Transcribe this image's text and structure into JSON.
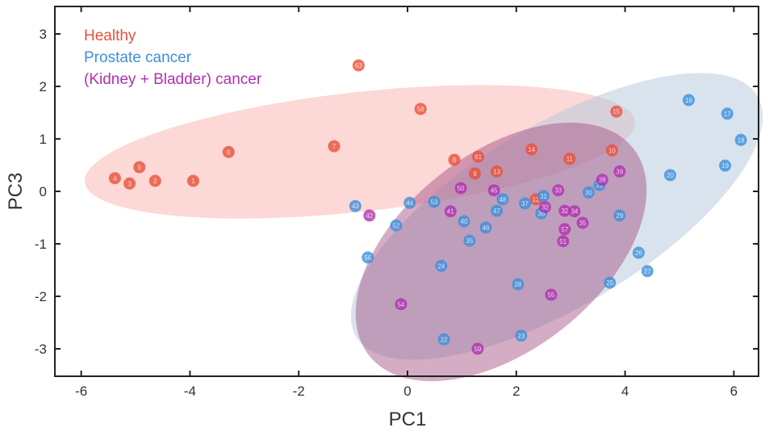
{
  "chart_data": {
    "type": "scatter",
    "xlabel": "PC1",
    "ylabel": "PC3",
    "xlim": [
      -6.5,
      6.5
    ],
    "ylim": [
      -3.5,
      3.5
    ],
    "xticks": [
      -6,
      -4,
      -2,
      0,
      2,
      4,
      6
    ],
    "yticks": [
      -3,
      -2,
      -1,
      0,
      1,
      2,
      3
    ],
    "grid": false,
    "legend_placement": "top-left",
    "legend": [
      {
        "name": "Healthy",
        "color": "#e8503a"
      },
      {
        "name": "Prostate cancer",
        "color": "#3d8fdc"
      },
      {
        "name": "(Kidney + Bladder) cancer",
        "color": "#b02fb0"
      }
    ],
    "series": [
      {
        "name": "Healthy",
        "color": "#e8503a",
        "ellipse_fill": "#f9a8a4",
        "points": [
          {
            "x": -5.38,
            "y": 0.25,
            "label": "4"
          },
          {
            "x": -5.11,
            "y": 0.15,
            "label": "3"
          },
          {
            "x": -4.93,
            "y": 0.46,
            "label": "5"
          },
          {
            "x": -4.64,
            "y": 0.2,
            "label": "2"
          },
          {
            "x": -3.94,
            "y": 0.2,
            "label": "1"
          },
          {
            "x": -3.29,
            "y": 0.75,
            "label": "6"
          },
          {
            "x": -1.35,
            "y": 0.86,
            "label": "7"
          },
          {
            "x": -0.9,
            "y": 2.4,
            "label": "63"
          },
          {
            "x": 0.24,
            "y": 1.57,
            "label": "58"
          },
          {
            "x": 0.86,
            "y": 0.6,
            "label": "8"
          },
          {
            "x": 1.3,
            "y": 0.66,
            "label": "61"
          },
          {
            "x": 1.24,
            "y": 0.34,
            "label": "9"
          },
          {
            "x": 1.64,
            "y": 0.38,
            "label": "13"
          },
          {
            "x": 2.28,
            "y": 0.8,
            "label": "14"
          },
          {
            "x": 2.36,
            "y": -0.15,
            "label": "12"
          },
          {
            "x": 2.98,
            "y": 0.62,
            "label": "11"
          },
          {
            "x": 3.76,
            "y": 0.78,
            "label": "10"
          },
          {
            "x": 3.84,
            "y": 1.52,
            "label": "15"
          }
        ]
      },
      {
        "name": "Prostate cancer",
        "color": "#3d8fdc",
        "ellipse_fill": "#b4c8dc",
        "points": [
          {
            "x": 5.17,
            "y": 1.74,
            "label": "16"
          },
          {
            "x": 5.88,
            "y": 1.48,
            "label": "17"
          },
          {
            "x": 6.13,
            "y": 0.98,
            "label": "18"
          },
          {
            "x": 5.84,
            "y": 0.49,
            "label": "19"
          },
          {
            "x": 4.83,
            "y": 0.31,
            "label": "20"
          },
          {
            "x": 3.53,
            "y": 0.12,
            "label": "21"
          },
          {
            "x": 3.33,
            "y": -0.02,
            "label": "30"
          },
          {
            "x": 2.5,
            "y": -0.09,
            "label": "31"
          },
          {
            "x": 2.46,
            "y": -0.42,
            "label": "36"
          },
          {
            "x": 3.9,
            "y": -0.46,
            "label": "29"
          },
          {
            "x": 4.25,
            "y": -1.17,
            "label": "26"
          },
          {
            "x": 4.41,
            "y": -1.52,
            "label": "27"
          },
          {
            "x": 3.72,
            "y": -1.74,
            "label": "25"
          },
          {
            "x": 2.03,
            "y": -1.77,
            "label": "28"
          },
          {
            "x": 0.62,
            "y": -1.42,
            "label": "24"
          },
          {
            "x": 1.14,
            "y": -0.94,
            "label": "35"
          },
          {
            "x": 0.67,
            "y": -2.82,
            "label": "22"
          },
          {
            "x": 2.09,
            "y": -2.75,
            "label": "23"
          },
          {
            "x": 2.16,
            "y": -0.23,
            "label": "37"
          },
          {
            "x": 1.75,
            "y": -0.15,
            "label": "48"
          },
          {
            "x": 1.64,
            "y": -0.37,
            "label": "47"
          },
          {
            "x": 1.04,
            "y": -0.57,
            "label": "40"
          },
          {
            "x": 1.44,
            "y": -0.69,
            "label": "46"
          },
          {
            "x": 0.49,
            "y": -0.2,
            "label": "53"
          },
          {
            "x": 0.04,
            "y": -0.22,
            "label": "44"
          },
          {
            "x": -0.96,
            "y": -0.28,
            "label": "43"
          },
          {
            "x": -0.21,
            "y": -0.65,
            "label": "52"
          },
          {
            "x": -0.73,
            "y": -1.26,
            "label": "56"
          }
        ]
      },
      {
        "name": "(Kidney + Bladder) cancer",
        "color": "#b02fb0",
        "ellipse_fill": "#a04a7e",
        "points": [
          {
            "x": -0.7,
            "y": -0.46,
            "label": "42"
          },
          {
            "x": 0.79,
            "y": -0.38,
            "label": "41"
          },
          {
            "x": 0.98,
            "y": 0.06,
            "label": "50"
          },
          {
            "x": 1.59,
            "y": 0.02,
            "label": "45"
          },
          {
            "x": 2.77,
            "y": 0.02,
            "label": "33"
          },
          {
            "x": 3.58,
            "y": 0.22,
            "label": "38"
          },
          {
            "x": 3.9,
            "y": 0.38,
            "label": "39"
          },
          {
            "x": 2.53,
            "y": -0.3,
            "label": "32"
          },
          {
            "x": 2.89,
            "y": -0.37,
            "label": "32"
          },
          {
            "x": 3.07,
            "y": -0.38,
            "label": "34"
          },
          {
            "x": 3.22,
            "y": -0.6,
            "label": "35"
          },
          {
            "x": 2.89,
            "y": -0.72,
            "label": "57"
          },
          {
            "x": 2.86,
            "y": -0.95,
            "label": "51"
          },
          {
            "x": 2.64,
            "y": -1.97,
            "label": "55"
          },
          {
            "x": -0.12,
            "y": -2.15,
            "label": "54"
          },
          {
            "x": 1.29,
            "y": -3.0,
            "label": "59"
          }
        ]
      }
    ]
  }
}
